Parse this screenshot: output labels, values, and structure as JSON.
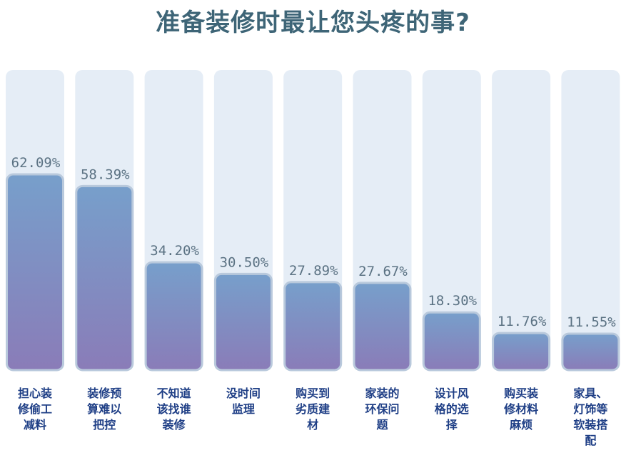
{
  "chart_data": {
    "type": "bar",
    "title": "准备装修时最让您头疼的事?",
    "categories": [
      "担心装修偷工减料",
      "装修预算难以把控",
      "不知道该找谁装修",
      "没时间监理",
      "购买到劣质建材",
      "家装的环保问题",
      "设计风格的选择",
      "购买装修材料麻烦",
      "家具、灯饰等软装搭配"
    ],
    "category_lines": [
      [
        "担心装",
        "修偷工",
        "减料"
      ],
      [
        "装修预",
        "算难以",
        "把控"
      ],
      [
        "不知道",
        "该找谁",
        "装修"
      ],
      [
        "没时间",
        "监理"
      ],
      [
        "购买到",
        "劣质建",
        "材"
      ],
      [
        "家装的",
        "环保问",
        "题"
      ],
      [
        "设计风",
        "格的选",
        "择"
      ],
      [
        "购买装",
        "修材料",
        "麻烦"
      ],
      [
        "家具、",
        "灯饰等",
        "软装搭",
        "配"
      ]
    ],
    "values": [
      62.09,
      58.39,
      34.2,
      30.5,
      27.89,
      27.67,
      18.3,
      11.76,
      11.55
    ],
    "value_labels": [
      "62.09%",
      "58.39%",
      "34.20%",
      "30.50%",
      "27.89%",
      "27.67%",
      "18.30%",
      "11.76%",
      "11.55%"
    ],
    "xlabel": "",
    "ylabel": "",
    "grid": false,
    "legend": "none",
    "colors": {
      "bar_top": "#779fcb",
      "bar_bottom": "#8a7cb8",
      "bar_stroke": "#b9c9dc",
      "track": "#e5edf6",
      "title": "#3e6577",
      "value_label": "#5b7283",
      "category_label": "#1f3f86"
    }
  }
}
